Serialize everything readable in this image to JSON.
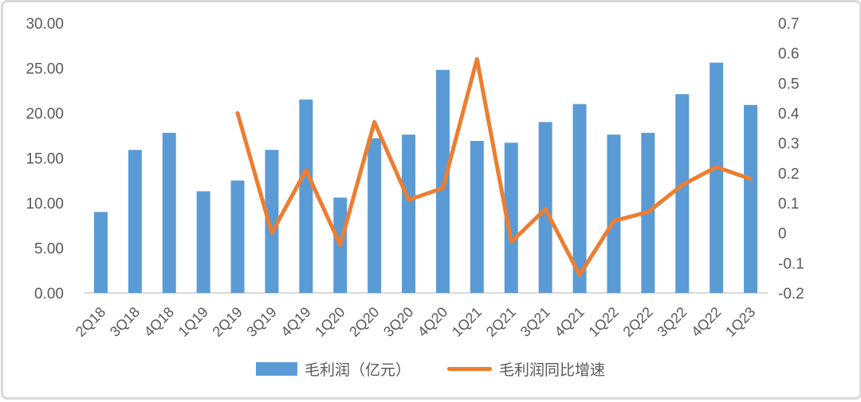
{
  "chart_data": {
    "type": "combo-bar-line",
    "title": "",
    "categories": [
      "2Q18",
      "3Q18",
      "4Q18",
      "1Q19",
      "2Q19",
      "3Q19",
      "4Q19",
      "1Q20",
      "2Q20",
      "3Q20",
      "4Q20",
      "1Q21",
      "2Q21",
      "3Q21",
      "4Q21",
      "1Q22",
      "2Q22",
      "3Q22",
      "4Q22",
      "1Q23"
    ],
    "series": [
      {
        "name": "毛利润（亿元）",
        "type": "bar",
        "axis": "left",
        "color": "#5B9BD5",
        "values": [
          9.0,
          15.9,
          17.8,
          11.3,
          12.5,
          15.9,
          21.5,
          10.6,
          17.2,
          17.6,
          24.8,
          16.9,
          16.7,
          19.0,
          21.0,
          17.6,
          17.8,
          22.1,
          25.6,
          20.9
        ]
      },
      {
        "name": "毛利润同比增速",
        "type": "line",
        "axis": "right",
        "color": "#ED7D31",
        "values": [
          null,
          null,
          null,
          null,
          0.4,
          0.0,
          0.21,
          -0.04,
          0.37,
          0.11,
          0.15,
          0.58,
          -0.03,
          0.08,
          -0.14,
          0.04,
          0.07,
          0.16,
          0.22,
          0.18
        ]
      }
    ],
    "left_axis": {
      "min": 0,
      "max": 30,
      "step": 5,
      "tick_labels": [
        "0.00",
        "5.00",
        "10.00",
        "15.00",
        "20.00",
        "25.00",
        "30.00"
      ]
    },
    "right_axis": {
      "min": -0.2,
      "max": 0.7,
      "step": 0.1,
      "tick_labels": [
        "-0.2",
        "-0.1",
        "0",
        "0.1",
        "0.2",
        "0.3",
        "0.4",
        "0.5",
        "0.6",
        "0.7"
      ]
    },
    "grid": false,
    "legend_position": "bottom",
    "x_label_rotation_deg": -45,
    "colors": {
      "bar": "#5B9BD5",
      "line": "#ED7D31",
      "tick_text": "#595959",
      "axis_line": "#D9D9D9",
      "background": "#FFFFFF",
      "frame_border": "#D9D9D9"
    }
  }
}
